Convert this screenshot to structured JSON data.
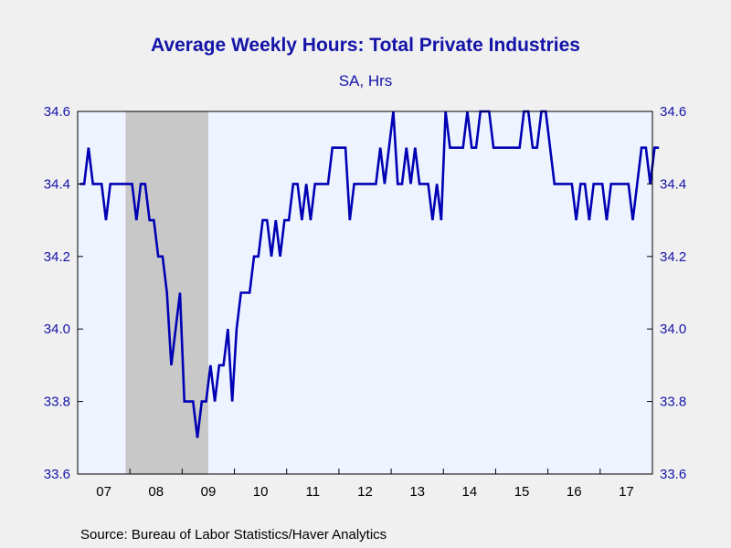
{
  "title": "Average Weekly Hours: Total Private Industries",
  "subtitle": "SA, Hrs",
  "source": "Source:  Bureau of Labor Statistics/Haver Analytics",
  "colors": {
    "line": "#0000b4",
    "title": "#1414a8",
    "plot_background": "#eef4ff",
    "recession_shade": "#c8c8c8",
    "page_background": "#f0f0f0"
  },
  "chart_data": {
    "type": "line",
    "title": "Average Weekly Hours: Total Private Industries",
    "subtitle": "SA, Hrs",
    "ylim": [
      33.6,
      34.6
    ],
    "xlim": [
      "2007-01",
      "2017-12"
    ],
    "yticks": [
      "33.6",
      "33.8",
      "34.0",
      "34.2",
      "34.4",
      "34.6"
    ],
    "xtick_labels": [
      "07",
      "08",
      "09",
      "10",
      "11",
      "12",
      "13",
      "14",
      "15",
      "16",
      "17"
    ],
    "dual_y_axis": true,
    "grid": false,
    "recession_shading": {
      "start": "2007-12",
      "end": "2009-06"
    },
    "series": [
      {
        "start": "2007-01",
        "frequency": "monthly",
        "values": [
          34.4,
          34.4,
          34.5,
          34.4,
          34.4,
          34.4,
          34.3,
          34.4,
          34.4,
          34.4,
          34.4,
          34.4,
          34.4,
          34.3,
          34.4,
          34.4,
          34.3,
          34.3,
          34.2,
          34.2,
          34.1,
          33.9,
          34.0,
          34.1,
          33.8,
          33.8,
          33.8,
          33.7,
          33.8,
          33.8,
          33.9,
          33.8,
          33.9,
          33.9,
          34.0,
          33.8,
          34.0,
          34.1,
          34.1,
          34.1,
          34.2,
          34.2,
          34.3,
          34.3,
          34.2,
          34.3,
          34.2,
          34.3,
          34.3,
          34.4,
          34.4,
          34.3,
          34.4,
          34.3,
          34.4,
          34.4,
          34.4,
          34.4,
          34.5,
          34.5,
          34.5,
          34.5,
          34.3,
          34.4,
          34.4,
          34.4,
          34.4,
          34.4,
          34.4,
          34.5,
          34.4,
          34.5,
          34.6,
          34.4,
          34.4,
          34.5,
          34.4,
          34.5,
          34.4,
          34.4,
          34.4,
          34.3,
          34.4,
          34.3,
          34.6,
          34.5,
          34.5,
          34.5,
          34.5,
          34.6,
          34.5,
          34.5,
          34.6,
          34.6,
          34.6,
          34.5,
          34.5,
          34.5,
          34.5,
          34.5,
          34.5,
          34.5,
          34.6,
          34.6,
          34.5,
          34.5,
          34.6,
          34.6,
          34.5,
          34.4,
          34.4,
          34.4,
          34.4,
          34.4,
          34.3,
          34.4,
          34.4,
          34.3,
          34.4,
          34.4,
          34.4,
          34.3,
          34.4,
          34.4,
          34.4,
          34.4,
          34.4,
          34.3,
          34.4,
          34.5,
          34.5,
          34.4,
          34.5,
          34.5
        ]
      }
    ]
  }
}
